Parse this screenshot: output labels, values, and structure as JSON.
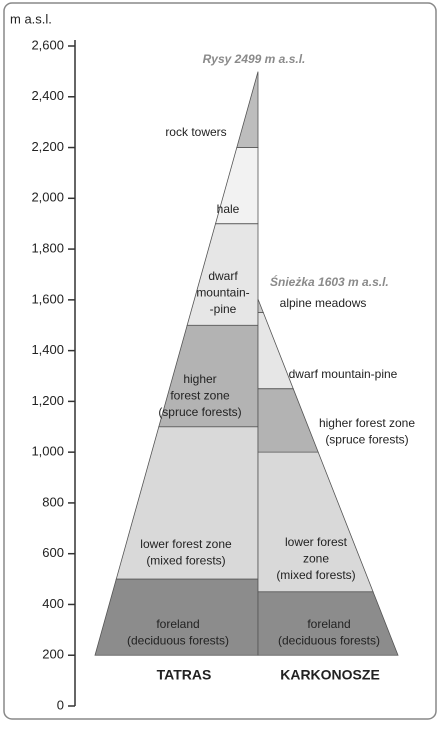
{
  "chart_data": {
    "type": "zonation",
    "ylabel": "m a.s.l.",
    "ylim": [
      0,
      2600
    ],
    "yticks": [
      0,
      200,
      400,
      600,
      800,
      {
        "value": 1000,
        "label": "1,000"
      },
      {
        "value": 1200,
        "label": "1,200"
      },
      {
        "value": 1400,
        "label": "1,400"
      },
      {
        "value": 1600,
        "label": "1,600"
      },
      {
        "value": 1800,
        "label": "1,800"
      },
      {
        "value": 2000,
        "label": "2,000"
      },
      {
        "value": 2200,
        "label": "2,200"
      },
      {
        "value": 2400,
        "label": "2,400"
      },
      {
        "value": 2600,
        "label": "2,600"
      }
    ],
    "mountains": [
      {
        "name": "TATRAS",
        "peak": 2499,
        "peak_label": "Rysy 2499 m a.s.l.",
        "zones": [
          {
            "label": [
              "foreland",
              "(deciduous forests)"
            ],
            "from": 200,
            "to": 500,
            "color": "#8c8c8c"
          },
          {
            "label": [
              "lower forest zone",
              "(mixed forests)"
            ],
            "from": 500,
            "to": 1100,
            "color": "#d9d9d9"
          },
          {
            "label": [
              "higher",
              "forest zone",
              "(spruce forests)"
            ],
            "from": 1100,
            "to": 1500,
            "color": "#b3b3b3"
          },
          {
            "label": [
              "dwarf",
              "mountain-",
              "-pine"
            ],
            "from": 1500,
            "to": 1900,
            "color": "#e6e6e6"
          },
          {
            "label": [
              "hale"
            ],
            "from": 1900,
            "to": 2200,
            "color": "#f2f2f2"
          },
          {
            "label": [
              "rock towers"
            ],
            "from": 2200,
            "to": 2499,
            "color": "#bdbdbd"
          }
        ]
      },
      {
        "name": "KARKONOSZE",
        "peak": 1603,
        "peak_label": "Śnieżka 1603 m a.s.l.",
        "zones": [
          {
            "label": [
              "foreland",
              "(deciduous forests)"
            ],
            "from": 200,
            "to": 450,
            "color": "#8c8c8c"
          },
          {
            "label": [
              "lower forest",
              "zone",
              "(mixed forests)"
            ],
            "from": 450,
            "to": 1000,
            "color": "#d9d9d9"
          },
          {
            "label": [
              "higher forest zone",
              "(spruce forests)"
            ],
            "from": 1000,
            "to": 1250,
            "color": "#b3b3b3"
          },
          {
            "label": [
              "dwarf mountain-pine"
            ],
            "from": 1250,
            "to": 1550,
            "color": "#e6e6e6"
          },
          {
            "label": [
              "alpine meadows"
            ],
            "from": 1550,
            "to": 1603,
            "color": "#c9c9c9"
          }
        ]
      }
    ]
  }
}
